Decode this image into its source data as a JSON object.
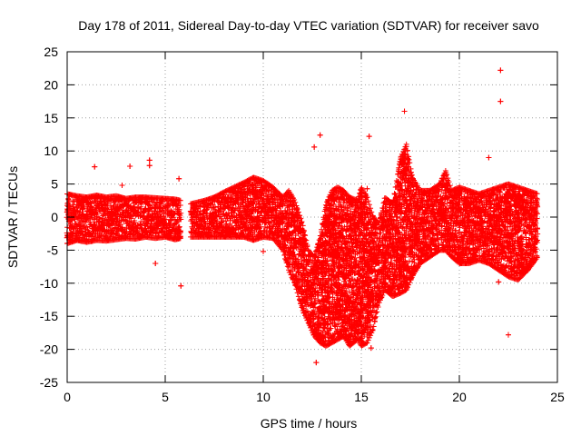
{
  "chart_data": {
    "type": "scatter",
    "title": "Day 178 of 2011, Sidereal Day-to-day VTEC variation (SDTVAR) for receiver savo",
    "xlabel": "GPS time / hours",
    "ylabel": "SDTVAR / TECUs",
    "xlim": [
      0,
      25
    ],
    "ylim": [
      -25,
      25
    ],
    "xticks": [
      0,
      5,
      10,
      15,
      20,
      25
    ],
    "yticks": [
      -25,
      -20,
      -15,
      -10,
      -5,
      0,
      5,
      10,
      15,
      20,
      25
    ],
    "grid": true,
    "marker": "+",
    "color": "#ff0000",
    "series": [
      {
        "name": "SDTVAR",
        "envelope": {
          "note": "dense band of plus markers; x in hours, upper and lower bound in TECU",
          "segments": [
            {
              "x": [
                0.0,
                0.5,
                1.0,
                1.5,
                2.0,
                2.5,
                3.0,
                3.5,
                4.0,
                4.5,
                5.0,
                5.5,
                5.8
              ],
              "upper": [
                3.5,
                3.2,
                3.0,
                3.3,
                3.0,
                3.2,
                2.8,
                3.0,
                3.0,
                2.9,
                2.8,
                2.7,
                2.5
              ],
              "lower": [
                -4.0,
                -3.5,
                -3.8,
                -3.5,
                -3.6,
                -3.4,
                -3.2,
                -3.3,
                -3.0,
                -3.2,
                -3.0,
                -3.4,
                -3.2
              ]
            },
            {
              "x": [
                6.3,
                7.0,
                7.5,
                8.0,
                8.5,
                9.0,
                9.5,
                10.0,
                10.5,
                11.0,
                11.3,
                11.6,
                12.0,
                12.3,
                12.6,
                12.9,
                13.2,
                13.5,
                13.8,
                14.1,
                14.4,
                14.8,
                15.0,
                15.3,
                15.6,
                15.9,
                16.2,
                16.6,
                17.0,
                17.3,
                17.6,
                18.0,
                18.5,
                19.0,
                19.3,
                19.6,
                20.0,
                20.5,
                21.0,
                21.5,
                22.0,
                22.5,
                23.0,
                23.5,
                24.0
              ],
              "upper": [
                2.0,
                2.5,
                3.0,
                3.8,
                4.5,
                5.2,
                6.0,
                5.5,
                4.5,
                3.0,
                4.0,
                2.5,
                -1.0,
                -5.0,
                -6.0,
                -3.0,
                2.0,
                4.0,
                4.5,
                4.0,
                3.0,
                2.5,
                4.5,
                3.0,
                0.0,
                -1.0,
                3.0,
                2.0,
                9.0,
                11.0,
                6.0,
                4.0,
                4.0,
                5.0,
                7.0,
                4.0,
                4.5,
                4.0,
                3.5,
                4.0,
                4.5,
                5.0,
                4.5,
                4.0,
                3.5
              ],
              "lower": [
                -3.0,
                -3.0,
                -3.0,
                -3.0,
                -3.0,
                -3.0,
                -3.5,
                -3.0,
                -3.2,
                -5.0,
                -8.0,
                -10.0,
                -14.0,
                -16.0,
                -18.0,
                -19.0,
                -19.5,
                -19.0,
                -18.5,
                -18.0,
                -19.5,
                -18.5,
                -19.5,
                -19.0,
                -17.0,
                -13.0,
                -11.0,
                -12.0,
                -11.5,
                -11.0,
                -9.0,
                -7.0,
                -6.0,
                -5.0,
                -5.0,
                -6.0,
                -7.0,
                -7.0,
                -6.5,
                -7.0,
                -8.0,
                -9.0,
                -9.5,
                -8.0,
                -6.0
              ]
            }
          ]
        },
        "outliers": [
          {
            "x": 22.1,
            "y": 22.2
          },
          {
            "x": 22.1,
            "y": 17.5
          },
          {
            "x": 17.2,
            "y": 16.0
          },
          {
            "x": 12.9,
            "y": 12.4
          },
          {
            "x": 15.4,
            "y": 12.2
          },
          {
            "x": 12.6,
            "y": 10.6
          },
          {
            "x": 21.5,
            "y": 9.0
          },
          {
            "x": 4.2,
            "y": 8.6
          },
          {
            "x": 4.2,
            "y": 7.8
          },
          {
            "x": 3.2,
            "y": 7.7
          },
          {
            "x": 1.4,
            "y": 7.6
          },
          {
            "x": 5.7,
            "y": 5.8
          },
          {
            "x": 2.8,
            "y": 4.8
          },
          {
            "x": 15.3,
            "y": 4.3
          },
          {
            "x": 5.8,
            "y": -10.4
          },
          {
            "x": 10.0,
            "y": -5.2
          },
          {
            "x": 4.5,
            "y": -7.0
          },
          {
            "x": 22.0,
            "y": -9.8
          },
          {
            "x": 22.5,
            "y": -17.8
          },
          {
            "x": 12.7,
            "y": -22.0
          },
          {
            "x": 15.5,
            "y": -19.8
          }
        ]
      }
    ]
  }
}
